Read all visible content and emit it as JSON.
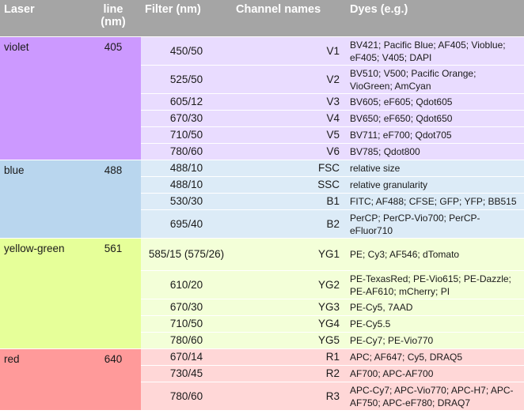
{
  "headers": {
    "laser": "Laser",
    "line": "line (nm)",
    "filter": "Filter (nm)",
    "channel": "Channel names",
    "dyes": "Dyes (e.g.)"
  },
  "colors": {
    "header_bg": "#a5a5a5",
    "violet_laser": "#cc99ff",
    "violet_row": "#e9dcff",
    "blue_laser": "#b9d6ee",
    "blue_row": "#dcebf7",
    "yellowgreen_laser": "#e6ff99",
    "yellowgreen_row": "#f3ffd8",
    "red_laser": "#ff9a9a",
    "red_row": "#ffd7d7"
  },
  "groups": [
    {
      "laser": "violet",
      "line": "405",
      "rows": [
        {
          "filter": "450/50",
          "channel": "V1",
          "dyes": "BV421; Pacific Blue; AF405; Vioblue; eF405; V405; DAPI"
        },
        {
          "filter": "525/50",
          "channel": "V2",
          "dyes": "BV510; V500; Pacific Orange; VioGreen; AmCyan"
        },
        {
          "filter": "605/12",
          "channel": "V3",
          "dyes": "BV605; eF605; Qdot605"
        },
        {
          "filter": "670/30",
          "channel": "V4",
          "dyes": "BV650; eF650; Qdot650"
        },
        {
          "filter": "710/50",
          "channel": "V5",
          "dyes": "BV711; eF700; Qdot705"
        },
        {
          "filter": "780/60",
          "channel": "V6",
          "dyes": "BV785; Qdot800"
        }
      ]
    },
    {
      "laser": "blue",
      "line": "488",
      "rows": [
        {
          "filter": "488/10",
          "channel": "FSC",
          "dyes": "relative size"
        },
        {
          "filter": "488/10",
          "channel": "SSC",
          "dyes": "relative granularity"
        },
        {
          "filter": "530/30",
          "channel": "B1",
          "dyes": "FITC; AF488; CFSE; GFP; YFP; BB515"
        },
        {
          "filter": "695/40",
          "channel": "B2",
          "dyes": "PerCP; PerCP-Vio700; PerCP-eFluor710"
        }
      ]
    },
    {
      "laser": "yellow-green",
      "line": "561",
      "rows": [
        {
          "filter": "585/15 (575/26)",
          "channel": "YG1",
          "dyes": "PE; Cy3; AF546; dTomato"
        },
        {
          "filter": "610/20",
          "channel": "YG2",
          "dyes": "PE-TexasRed; PE-Vio615; PE-Dazzle; PE-AF610; mCherry; PI"
        },
        {
          "filter": "670/30",
          "channel": "YG3",
          "dyes": "PE-Cy5, 7AAD"
        },
        {
          "filter": "710/50",
          "channel": "YG4",
          "dyes": "PE-Cy5.5"
        },
        {
          "filter": "780/60",
          "channel": "YG5",
          "dyes": "PE-Cy7; PE-Vio770"
        }
      ]
    },
    {
      "laser": "red",
      "line": "640",
      "rows": [
        {
          "filter": "670/14",
          "channel": "R1",
          "dyes": "APC; AF647; Cy5, DRAQ5"
        },
        {
          "filter": "730/45",
          "channel": "R2",
          "dyes": "AF700; APC-AF700"
        },
        {
          "filter": "780/60",
          "channel": "R3",
          "dyes": "APC-Cy7; APC-Vio770; APC-H7; APC-AF750; APC-eF780; DRAQ7"
        }
      ]
    }
  ]
}
